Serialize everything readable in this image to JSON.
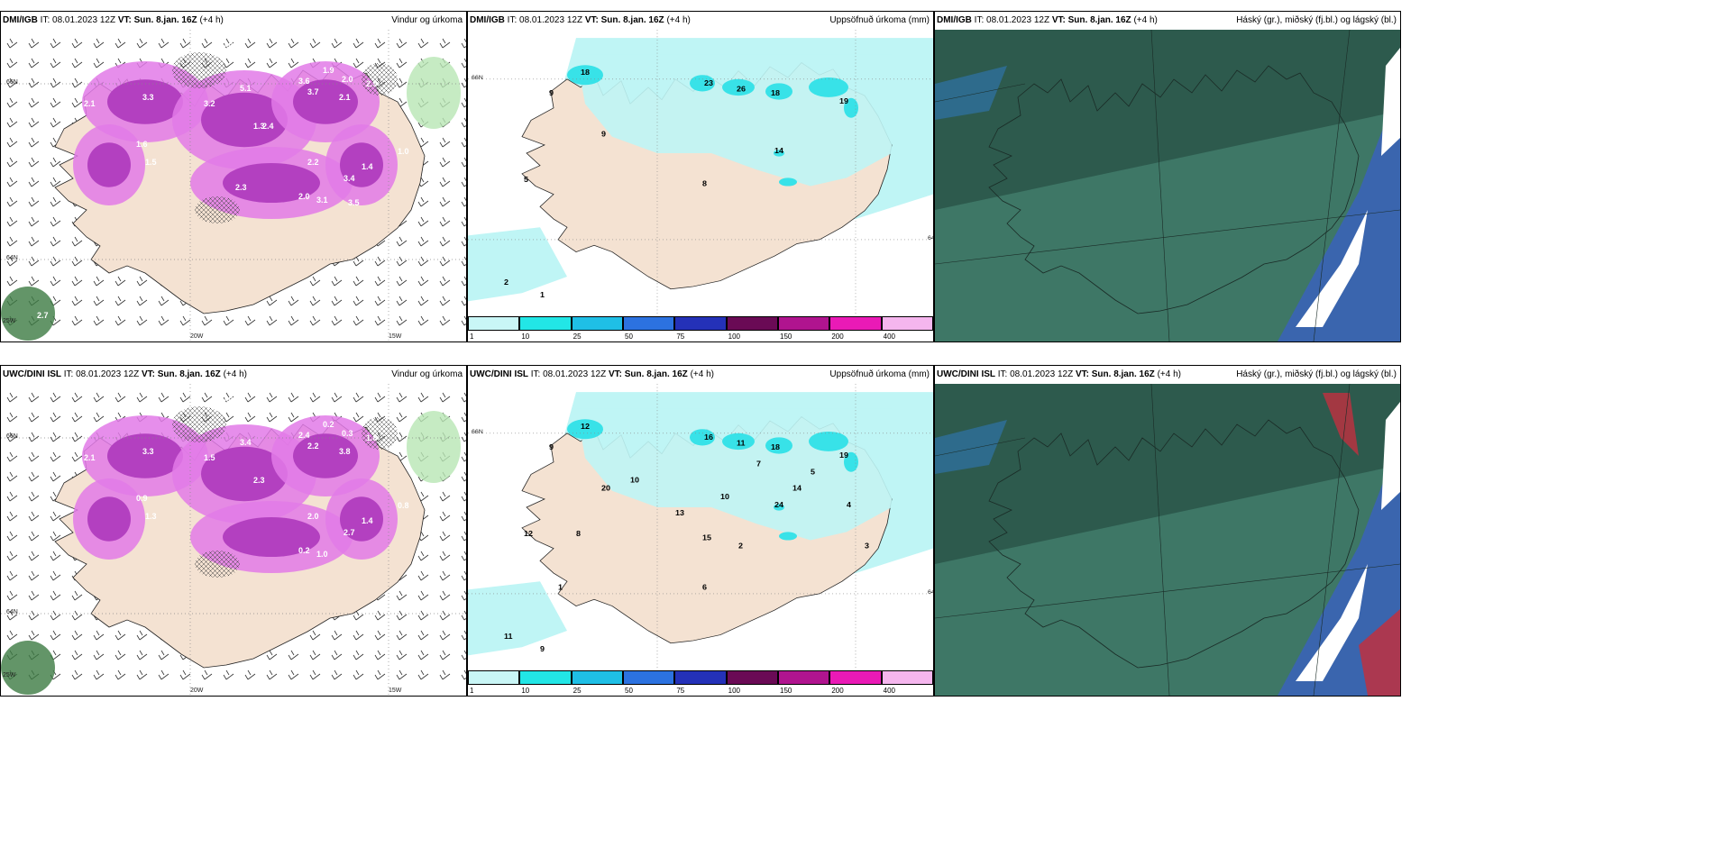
{
  "panels": [
    {
      "id": "p1",
      "model": "DMI/IGB",
      "it": "IT: 08.01.2023 12Z",
      "vt": "VT: Sun. 8.jan. 16Z",
      "lead": "(+4 h)",
      "product": "Vindur og úrkoma",
      "type": "wind",
      "values": [
        "0.4",
        "0.4",
        "1.3",
        "1.9",
        "2.0",
        "2.9",
        "3.6",
        "3.7",
        "2.1",
        "5.1",
        "3.3",
        "3.2",
        "2.1",
        "1.6",
        "1.5",
        "1.0",
        "1.3",
        "2.2",
        "3.4",
        "1.4",
        "2.0",
        "3.1",
        "3.5",
        "2.3",
        "2.4",
        "2.7",
        "1.0"
      ]
    },
    {
      "id": "p2",
      "model": "DMI/IGB",
      "it": "IT: 08.01.2023 12Z",
      "vt": "VT: Sun. 8.jan. 16Z",
      "lead": "(+4 h)",
      "product": "Uppsöfnuð úrkoma (mm)",
      "type": "precip",
      "values": [
        "18",
        "9",
        "23",
        "26",
        "18",
        "19",
        "9",
        "14",
        "8",
        "5",
        "2",
        "1"
      ]
    },
    {
      "id": "p3",
      "model": "DMI/IGB",
      "it": "IT: 08.01.2023 12Z",
      "vt": "VT: Sun. 8.jan. 16Z",
      "lead": "(+4 h)",
      "product": "Háský (gr.), miðský (fj.bl.) og lágský (bl.)",
      "type": "cloud"
    },
    {
      "id": "p4",
      "model": "UWC/DINI ISL",
      "it": "IT: 08.01.2023 12Z",
      "vt": "VT: Sun. 8.jan. 16Z",
      "lead": "(+4 h)",
      "product": "Vindur og úrkoma",
      "type": "wind",
      "values": [
        "0.2",
        "0.4",
        "0.2",
        "0.2",
        "0.3",
        "1.8",
        "2.4",
        "2.2",
        "3.8",
        "3.4",
        "3.3",
        "1.5",
        "2.1",
        "0.9",
        "1.3",
        "0.8",
        "2.3",
        "2.0",
        "2.7",
        "1.4",
        "0.2",
        "1.0"
      ]
    },
    {
      "id": "p5",
      "model": "UWC/DINI ISL",
      "it": "IT: 08.01.2023 12Z",
      "vt": "VT: Sun. 8.jan. 16Z",
      "lead": "(+4 h)",
      "product": "Uppsöfnuð úrkoma (mm)",
      "type": "precip",
      "values": [
        "12",
        "9",
        "16",
        "11",
        "18",
        "19",
        "20",
        "24",
        "15",
        "12",
        "11",
        "9",
        "10",
        "13",
        "10",
        "14",
        "8",
        "7",
        "5",
        "4",
        "3",
        "2",
        "6",
        "1"
      ]
    },
    {
      "id": "p6",
      "model": "UWC/DINI ISL",
      "it": "IT: 08.01.2023 12Z",
      "vt": "VT: Sun. 8.jan. 16Z",
      "lead": "(+4 h)",
      "product": "Háský (gr.), miðský (fj.bl.) og lágský (bl.)",
      "type": "cloud"
    }
  ],
  "axes": {
    "lon_20": "20W",
    "lon_15": "15W",
    "lon_25": "25W",
    "lat_66": "66N",
    "lat_64": "64N"
  },
  "colorbar": {
    "ticks": [
      "1",
      "10",
      "25",
      "50",
      "75",
      "100",
      "150",
      "200",
      "400"
    ],
    "colors": [
      "#c9f6f6",
      "#22e6e6",
      "#1fbfe6",
      "#2c72e0",
      "#2431b8",
      "#6a0a55",
      "#b0148f",
      "#ea1ab6",
      "#f5b6ee"
    ]
  },
  "colors": {
    "land": "#f4e2d2",
    "precip_light": "#bff5f5",
    "precip_cyan": "#38e2e8",
    "purple": "#b340c0",
    "magenta": "#e27ae8",
    "cloud_bg": "#2d5a4d",
    "cloud_mid": "#4a8a78",
    "cloud_high": "#2e9a8a"
  }
}
